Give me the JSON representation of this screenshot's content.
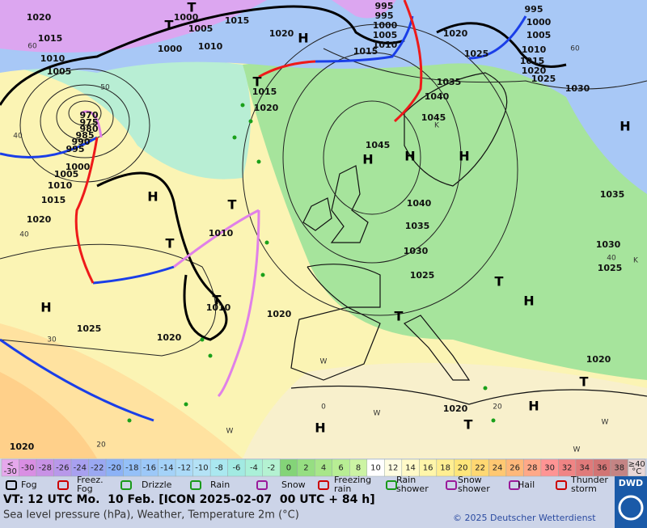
{
  "map": {
    "isobar_labels": [
      1020,
      1000,
      1015,
      1005,
      1020,
      995,
      995,
      1000,
      1005,
      1010,
      1015,
      1020,
      995,
      1000,
      1005,
      1010,
      1015,
      1020,
      1025,
      1030,
      1025,
      1035,
      1040,
      1045,
      1045,
      1040,
      1035,
      1030,
      1025,
      1020,
      1020,
      1015,
      1010,
      1005,
      1015,
      1020,
      1010,
      1000,
      970,
      975,
      980,
      985,
      990,
      995,
      1000,
      1005,
      1010,
      1015,
      1020,
      1010,
      1010,
      1025,
      1020,
      1020,
      1025,
      1030,
      1035,
      1020
    ],
    "pressure_centres": [
      "H",
      "T",
      "T",
      "T",
      "H",
      "H",
      "T",
      "T",
      "T",
      "H",
      "H",
      "H",
      "H",
      "T",
      "H",
      "T",
      "H",
      "H",
      "T",
      "T"
    ],
    "temperature_labels": [
      "60",
      "50",
      "40",
      "40",
      "30",
      "20",
      "0",
      "20",
      "60",
      "40",
      "W",
      "W",
      "W",
      "W",
      "W",
      "K",
      "K"
    ]
  },
  "temperature_scale": {
    "lower": {
      "lines": [
        "<",
        "-30"
      ],
      "color": "#e6a8ec"
    },
    "cells": [
      {
        "label": "-30",
        "color": "#d98ee3"
      },
      {
        "label": "-28",
        "color": "#c892e6"
      },
      {
        "label": "-26",
        "color": "#b898ea"
      },
      {
        "label": "-24",
        "color": "#a8a0f0"
      },
      {
        "label": "-22",
        "color": "#9aa8f2"
      },
      {
        "label": "-20",
        "color": "#8cb2f6"
      },
      {
        "label": "-18",
        "color": "#94c0f8"
      },
      {
        "label": "-16",
        "color": "#9cc8f8"
      },
      {
        "label": "-14",
        "color": "#a4d2f8"
      },
      {
        "label": "-12",
        "color": "#acdaf8"
      },
      {
        "label": "-10",
        "color": "#b4e2f6"
      },
      {
        "label": "-8",
        "color": "#aae8f0"
      },
      {
        "label": "-6",
        "color": "#a2eae2"
      },
      {
        "label": "-4",
        "color": "#aaf0d8"
      },
      {
        "label": "-2",
        "color": "#b4f2d2"
      },
      {
        "label": "0",
        "color": "#84d478"
      },
      {
        "label": "2",
        "color": "#96de82"
      },
      {
        "label": "4",
        "color": "#a8e68a"
      },
      {
        "label": "6",
        "color": "#b8ee94"
      },
      {
        "label": "8",
        "color": "#ccf4a4"
      },
      {
        "label": "10",
        "color": "#ffffff"
      },
      {
        "label": "12",
        "color": "#fffde2"
      },
      {
        "label": "14",
        "color": "#fffac8"
      },
      {
        "label": "16",
        "color": "#fff6aa"
      },
      {
        "label": "18",
        "color": "#ffee92"
      },
      {
        "label": "20",
        "color": "#ffe67a"
      },
      {
        "label": "22",
        "color": "#ffd872"
      },
      {
        "label": "24",
        "color": "#ffc872"
      },
      {
        "label": "26",
        "color": "#ffb87a"
      },
      {
        "label": "28",
        "color": "#ffa888"
      },
      {
        "label": "30",
        "color": "#ff9494"
      },
      {
        "label": "32",
        "color": "#f08484"
      },
      {
        "label": "34",
        "color": "#e07a7a"
      },
      {
        "label": "36",
        "color": "#d27474"
      },
      {
        "label": "38",
        "color": "#c48484"
      }
    ],
    "upper": {
      "lines": [
        "≥40",
        "°C"
      ],
      "color": "#e8d6d6"
    }
  },
  "legend": [
    {
      "lines": [
        "Fog"
      ]
    },
    {
      "lines": [
        "Freez.",
        "Fog"
      ]
    },
    {
      "lines": [
        "Drizzle"
      ]
    },
    {
      "lines": [
        "Rain"
      ]
    },
    {
      "lines": [
        "Snow"
      ]
    },
    {
      "lines": [
        "Freezing",
        "rain"
      ]
    },
    {
      "lines": [
        "Rain",
        "shower"
      ]
    },
    {
      "lines": [
        "Snow",
        "shower"
      ]
    },
    {
      "lines": [
        "Hail"
      ]
    },
    {
      "lines": [
        "Thunder",
        "storm"
      ]
    }
  ],
  "footer": {
    "valid_time": "VT: 12 UTC Mo.  10 Feb. [ICON 2025-02-07  00 UTC + 84 h]",
    "description": "Sea level pressure (hPa), Weather, Temperature 2m (°C)",
    "copyright": "© 2025 Deutscher Wetterdienst",
    "logo": "DWD"
  }
}
